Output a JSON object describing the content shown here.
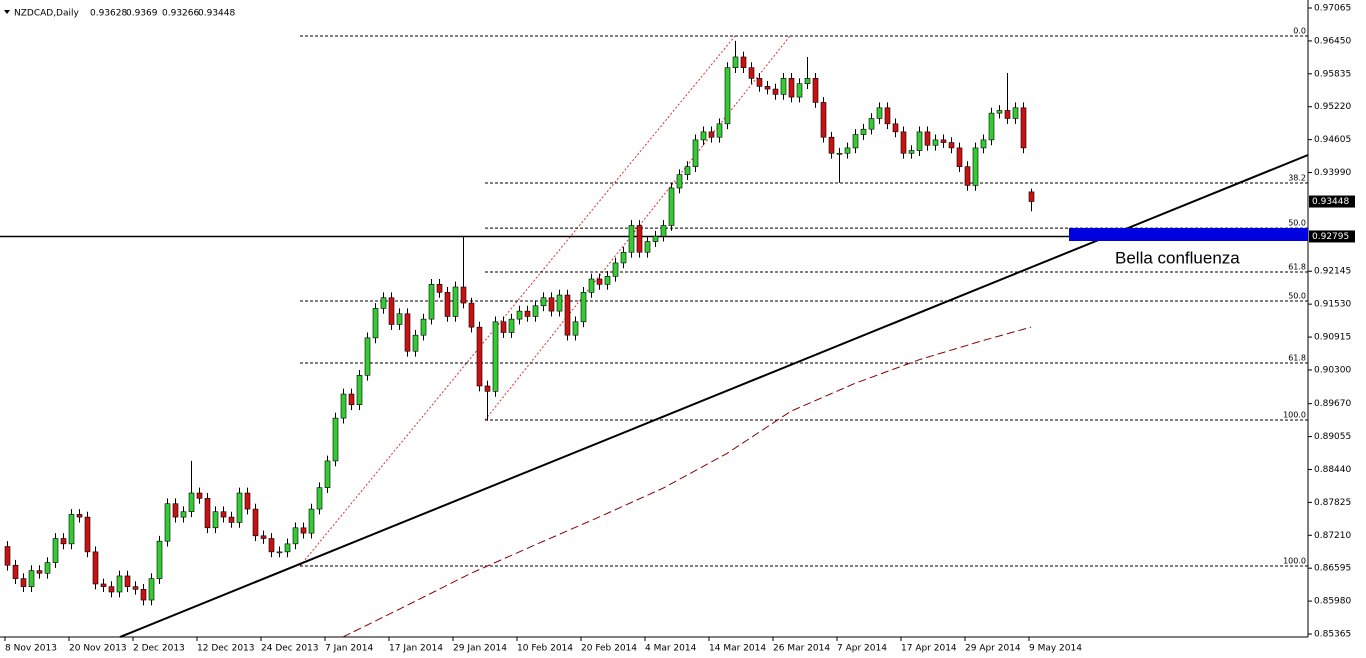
{
  "chart_data": {
    "type": "candlestick",
    "symbol": "NZDCAD,Daily",
    "annotation": "Bella confluenza",
    "colors": {
      "up": "#33cc33",
      "down": "#cc1111",
      "outline": "#000000",
      "ma": "#8b0000"
    },
    "categories": [
      "8 Nov 2013",
      null,
      null,
      null,
      null,
      null,
      null,
      null,
      "20 Nov 2013",
      null,
      null,
      null,
      null,
      null,
      null,
      null,
      "2 Dec 2013",
      null,
      null,
      null,
      null,
      null,
      null,
      null,
      "12 Dec 2013",
      null,
      null,
      null,
      null,
      null,
      null,
      null,
      "24 Dec 2013",
      null,
      null,
      null,
      null,
      null,
      null,
      null,
      "7 Jan 2014",
      null,
      null,
      null,
      null,
      null,
      null,
      null,
      "17 Jan 2014",
      null,
      null,
      null,
      null,
      null,
      null,
      null,
      "29 Jan 2014",
      null,
      null,
      null,
      null,
      null,
      null,
      null,
      "10 Feb 2014",
      null,
      null,
      null,
      null,
      null,
      null,
      null,
      "20 Feb 2014",
      null,
      null,
      null,
      null,
      null,
      null,
      null,
      "4 Mar 2014",
      null,
      null,
      null,
      null,
      null,
      null,
      null,
      "14 Mar 2014",
      null,
      null,
      null,
      null,
      null,
      null,
      null,
      "26 Mar 2014",
      null,
      null,
      null,
      null,
      null,
      null,
      null,
      "7 Apr 2014",
      null,
      null,
      null,
      null,
      null,
      null,
      null,
      "17 Apr 2014",
      null,
      null,
      null,
      null,
      null,
      null,
      null,
      "29 Apr 2014",
      null,
      null,
      null,
      null,
      null,
      null,
      null,
      "9 May 2014"
    ],
    "open": [
      0.87,
      0.8665,
      0.864,
      0.8625,
      0.8655,
      0.865,
      0.867,
      0.8715,
      0.8705,
      0.876,
      0.8755,
      0.869,
      0.863,
      0.8625,
      0.8615,
      0.8645,
      0.8625,
      0.862,
      0.86,
      0.864,
      0.871,
      0.878,
      0.8755,
      0.8765,
      0.88,
      0.879,
      0.8735,
      0.8765,
      0.8755,
      0.8745,
      0.88,
      0.877,
      0.872,
      0.8715,
      0.869,
      0.869,
      0.8705,
      0.8735,
      0.8725,
      0.877,
      0.881,
      0.886,
      0.894,
      0.8985,
      0.8965,
      0.902,
      0.909,
      0.9145,
      0.9165,
      0.9115,
      0.9135,
      0.9065,
      0.9095,
      0.9125,
      0.919,
      0.9175,
      0.913,
      0.9185,
      0.9155,
      0.911,
      0.9,
      0.899,
      0.912,
      0.91,
      0.9125,
      0.914,
      0.913,
      0.915,
      0.9165,
      0.914,
      0.917,
      0.9095,
      0.912,
      0.9175,
      0.92,
      0.919,
      0.9205,
      0.923,
      0.925,
      0.93,
      0.925,
      0.927,
      0.928,
      0.93,
      0.937,
      0.9395,
      0.941,
      0.946,
      0.9475,
      0.9465,
      0.949,
      0.9595,
      0.9615,
      0.9595,
      0.9575,
      0.956,
      0.9555,
      0.9545,
      0.9575,
      0.954,
      0.9565,
      0.9575,
      0.953,
      0.9465,
      0.9435,
      0.9435,
      0.9445,
      0.947,
      0.948,
      0.95,
      0.952,
      0.949,
      0.9475,
      0.9435,
      0.944,
      0.9475,
      0.945,
      0.946,
      0.9455,
      0.9445,
      0.941,
      0.9375,
      0.9445,
      0.946,
      0.951,
      0.9515,
      0.95,
      0.952,
      0.93628
    ],
    "high": [
      0.871,
      0.8675,
      0.865,
      0.8665,
      0.8665,
      0.868,
      0.8725,
      0.8725,
      0.877,
      0.877,
      0.8765,
      0.87,
      0.864,
      0.8635,
      0.8655,
      0.8655,
      0.8635,
      0.863,
      0.865,
      0.872,
      0.879,
      0.879,
      0.8775,
      0.886,
      0.881,
      0.88,
      0.8775,
      0.8775,
      0.8765,
      0.881,
      0.881,
      0.878,
      0.873,
      0.8725,
      0.87,
      0.8715,
      0.8745,
      0.8745,
      0.878,
      0.882,
      0.887,
      0.895,
      0.8995,
      0.8995,
      0.903,
      0.91,
      0.9155,
      0.9175,
      0.9175,
      0.9145,
      0.9145,
      0.9105,
      0.9135,
      0.92,
      0.92,
      0.9185,
      0.9195,
      0.9279,
      0.9165,
      0.912,
      0.901,
      0.913,
      0.913,
      0.9135,
      0.915,
      0.915,
      0.916,
      0.9175,
      0.9175,
      0.918,
      0.918,
      0.913,
      0.9185,
      0.921,
      0.921,
      0.9215,
      0.924,
      0.926,
      0.931,
      0.931,
      0.928,
      0.929,
      0.931,
      0.938,
      0.9405,
      0.942,
      0.947,
      0.9485,
      0.9485,
      0.95,
      0.9605,
      0.9645,
      0.9625,
      0.9605,
      0.9585,
      0.957,
      0.9565,
      0.9585,
      0.9585,
      0.9575,
      0.9615,
      0.9585,
      0.954,
      0.9475,
      0.9445,
      0.9455,
      0.948,
      0.949,
      0.951,
      0.953,
      0.953,
      0.95,
      0.9485,
      0.945,
      0.9485,
      0.9485,
      0.947,
      0.947,
      0.9465,
      0.9455,
      0.942,
      0.9455,
      0.947,
      0.952,
      0.9525,
      0.9585,
      0.953,
      0.953,
      0.9369
    ],
    "low": [
      0.8655,
      0.863,
      0.8615,
      0.8615,
      0.864,
      0.864,
      0.866,
      0.8695,
      0.8695,
      0.8745,
      0.868,
      0.862,
      0.8615,
      0.8605,
      0.8605,
      0.8615,
      0.861,
      0.859,
      0.859,
      0.863,
      0.87,
      0.8745,
      0.8745,
      0.8755,
      0.878,
      0.8725,
      0.8725,
      0.8745,
      0.8735,
      0.8735,
      0.876,
      0.871,
      0.8705,
      0.868,
      0.868,
      0.868,
      0.8695,
      0.8715,
      0.8715,
      0.876,
      0.88,
      0.885,
      0.893,
      0.8955,
      0.8955,
      0.901,
      0.908,
      0.9135,
      0.9105,
      0.9105,
      0.9055,
      0.9055,
      0.9085,
      0.9115,
      0.9165,
      0.912,
      0.912,
      0.9145,
      0.91,
      0.899,
      0.8935,
      0.898,
      0.909,
      0.909,
      0.9115,
      0.912,
      0.912,
      0.914,
      0.913,
      0.913,
      0.9085,
      0.9085,
      0.911,
      0.9165,
      0.918,
      0.918,
      0.9195,
      0.922,
      0.924,
      0.924,
      0.924,
      0.926,
      0.927,
      0.929,
      0.936,
      0.9385,
      0.94,
      0.945,
      0.9455,
      0.9455,
      0.948,
      0.9585,
      0.9585,
      0.9565,
      0.955,
      0.9545,
      0.9535,
      0.9535,
      0.953,
      0.953,
      0.9555,
      0.952,
      0.9455,
      0.9425,
      0.938,
      0.9425,
      0.9435,
      0.946,
      0.947,
      0.949,
      0.948,
      0.9465,
      0.9425,
      0.9425,
      0.943,
      0.944,
      0.944,
      0.9445,
      0.9435,
      0.94,
      0.9365,
      0.9365,
      0.9435,
      0.945,
      0.95,
      0.949,
      0.949,
      0.9435,
      0.93266
    ],
    "close": [
      0.8665,
      0.864,
      0.8625,
      0.8655,
      0.865,
      0.867,
      0.8715,
      0.8705,
      0.876,
      0.8755,
      0.869,
      0.863,
      0.8625,
      0.8615,
      0.8645,
      0.8625,
      0.862,
      0.86,
      0.864,
      0.871,
      0.878,
      0.8755,
      0.8765,
      0.88,
      0.879,
      0.8735,
      0.8765,
      0.8755,
      0.8745,
      0.88,
      0.877,
      0.872,
      0.8715,
      0.869,
      0.869,
      0.8705,
      0.8735,
      0.8725,
      0.877,
      0.881,
      0.886,
      0.894,
      0.8985,
      0.8965,
      0.902,
      0.909,
      0.9145,
      0.9165,
      0.9115,
      0.9135,
      0.9065,
      0.9095,
      0.9125,
      0.919,
      0.9175,
      0.913,
      0.9185,
      0.9155,
      0.911,
      0.9,
      0.899,
      0.912,
      0.91,
      0.9125,
      0.914,
      0.913,
      0.915,
      0.9165,
      0.914,
      0.917,
      0.9095,
      0.912,
      0.9175,
      0.92,
      0.919,
      0.9205,
      0.923,
      0.925,
      0.93,
      0.925,
      0.927,
      0.928,
      0.93,
      0.937,
      0.9395,
      0.941,
      0.946,
      0.9475,
      0.9465,
      0.949,
      0.9595,
      0.9615,
      0.9595,
      0.9575,
      0.956,
      0.9555,
      0.9545,
      0.9575,
      0.954,
      0.9565,
      0.9575,
      0.953,
      0.9465,
      0.9435,
      0.9435,
      0.9445,
      0.947,
      0.948,
      0.95,
      0.952,
      0.949,
      0.9475,
      0.9435,
      0.944,
      0.9475,
      0.945,
      0.946,
      0.9455,
      0.9445,
      0.941,
      0.9375,
      0.9445,
      0.946,
      0.951,
      0.9515,
      0.95,
      0.952,
      0.9445,
      0.93448
    ],
    "ma": {
      "x": [
        42,
        50,
        58,
        66,
        74,
        82,
        90,
        98,
        106,
        114,
        122,
        128
      ],
      "values": [
        0.8531,
        0.859,
        0.865,
        0.8703,
        0.8755,
        0.8809,
        0.8874,
        0.8953,
        0.9005,
        0.9049,
        0.9085,
        0.911
      ]
    },
    "hline": 0.92795,
    "fibo": [
      {
        "label": "0.0",
        "value": 0.96542
      },
      {
        "label": "38.2",
        "value": 0.93794
      },
      {
        "label": "50.0",
        "value": 0.9295
      },
      {
        "label": "61.8",
        "value": 0.9213
      },
      {
        "label": "100.0",
        "value": 0.89364
      },
      {
        "label": "50.0",
        "value": 0.91588
      },
      {
        "label": "61.8",
        "value": 0.90429
      },
      {
        "label": "100.0",
        "value": 0.86635
      }
    ],
    "ylim": [
      0.85365,
      0.97065
    ],
    "yticks": [
      0.97065,
      {
        "value": 0.9645,
        "label": "0.96450"
      },
      0.95835,
      {
        "value": 0.9522,
        "label": "0.95220"
      },
      0.94605,
      {
        "value": 0.9399,
        "label": "0.93990"
      },
      0.92145,
      {
        "value": 0.9153,
        "label": "0.91530"
      },
      0.90915,
      {
        "value": 0.903,
        "label": "0.90300"
      },
      {
        "value": 0.8967,
        "label": "0.89670"
      },
      0.89055,
      {
        "value": 0.8844,
        "label": "0.88440"
      },
      0.87825,
      {
        "value": 0.8721,
        "label": "0.87210"
      },
      0.86595,
      {
        "value": 0.8598,
        "label": "0.85980"
      },
      0.85365
    ]
  }
}
